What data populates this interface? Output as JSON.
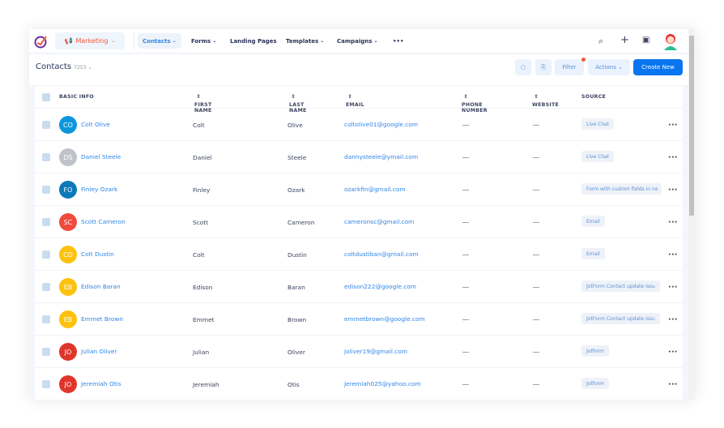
{
  "nav": {
    "app": "Marketing",
    "items": [
      {
        "label": "Contacts",
        "active": true,
        "dropdown": true
      },
      {
        "label": "Forms",
        "dropdown": true
      },
      {
        "label": "Landing Pages"
      },
      {
        "label": "Templates",
        "dropdown": true
      },
      {
        "label": "Campaigns",
        "dropdown": true
      },
      {
        "label": "•••"
      }
    ],
    "icons": [
      "search-icon",
      "plus-icon",
      "calendar-icon",
      "user-avatar"
    ]
  },
  "page": {
    "title": "Contacts",
    "count": "7253",
    "filter": "Filter",
    "actions": "Actions",
    "create": "Create New",
    "accent": "#0a75f0"
  },
  "columns": [
    "BASIC INFO",
    "FIRST NAME",
    "LAST NAME",
    "EMAIL",
    "PHONE NUMBER",
    "WEBSITE",
    "SOURCE"
  ],
  "rows": [
    {
      "initials": "CO",
      "color": "#0e96dc",
      "name": "Colt Olive",
      "first": "Colt",
      "last": "Olive",
      "email": "coltolive01@google.com",
      "source": "Live Chat"
    },
    {
      "initials": "DS",
      "color": "#bfc3c9",
      "name": "Daniel Steele",
      "first": "Daniel",
      "last": "Steele",
      "email": "dannysteele@ymail.com",
      "source": "Live Chat"
    },
    {
      "initials": "FO",
      "color": "#0b79b8",
      "name": "Finley Ozark",
      "first": "Finley",
      "last": "Ozark",
      "email": "ozarkfin@gmail.com",
      "source": "Form with custom fields in ne"
    },
    {
      "initials": "SC",
      "color": "#f04a3c",
      "name": "Scott Cameron",
      "first": "Scott",
      "last": "Cameron",
      "email": "cameronsc@gmail.com",
      "source": "Email"
    },
    {
      "initials": "CD",
      "color": "#fdc10e",
      "name": "Colt Dustin",
      "first": "Colt",
      "last": "Dustin",
      "email": "coltdustiban@gmail.com",
      "source": "Email"
    },
    {
      "initials": "EB",
      "color": "#fdc10e",
      "name": "Edison Baran",
      "first": "Edison",
      "last": "Baran",
      "email": "edison222@google.com",
      "source": "JotForm Contact update issu"
    },
    {
      "initials": "EB",
      "color": "#fdc10e",
      "name": "Emmet Brown",
      "first": "Emmet",
      "last": "Brown",
      "email": "emmetbrown@google.com",
      "source": "JotForm Contact update issu"
    },
    {
      "initials": "JO",
      "color": "#e0352b",
      "name": "Julian Oliver",
      "first": "Julian",
      "last": "Oliver",
      "email": "joliver19@gmail.com",
      "source": "Jotform"
    },
    {
      "initials": "JO",
      "color": "#e0352b",
      "name": "Jeremiah Otis",
      "first": "Jeremiah",
      "last": "Otis",
      "email": "jeremiah025@yahoo.com",
      "source": "Jotform"
    }
  ]
}
